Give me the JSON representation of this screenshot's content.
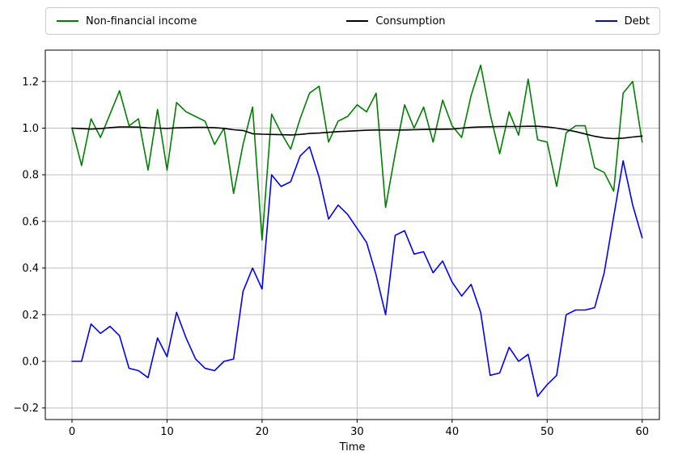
{
  "figure": {
    "background": "#ffffff"
  },
  "legend": {
    "position": "top-horizontal",
    "items": [
      {
        "label": "Non-financial income",
        "color": "#008000"
      },
      {
        "label": "Consumption",
        "color": "#000000"
      },
      {
        "label": "Debt",
        "color": "#0000ff"
      }
    ]
  },
  "colors": {
    "grid": "#c0c0c0",
    "spine": "#000000",
    "legend_border": "#cccccc"
  },
  "chart_data": {
    "type": "line",
    "title": "",
    "xlabel": "Time",
    "ylabel": "",
    "grid": true,
    "legend_position": "top horizontal, expanded",
    "xlim": [
      -2.81,
      61.81
    ],
    "ylim": [
      -0.2496,
      1.3345
    ],
    "x_ticks": [
      0,
      10,
      20,
      30,
      40,
      50,
      60
    ],
    "y_ticks": [
      -0.2,
      0.0,
      0.2,
      0.4,
      0.6,
      0.8,
      1.0,
      1.2
    ],
    "x": [
      0,
      1,
      2,
      3,
      4,
      5,
      6,
      7,
      8,
      9,
      10,
      11,
      12,
      13,
      14,
      15,
      16,
      17,
      18,
      19,
      20,
      21,
      22,
      23,
      24,
      25,
      26,
      27,
      28,
      29,
      30,
      31,
      32,
      33,
      34,
      35,
      36,
      37,
      38,
      39,
      40,
      41,
      42,
      43,
      44,
      45,
      46,
      47,
      48,
      49,
      50,
      51,
      52,
      53,
      54,
      55,
      56,
      57,
      58,
      59,
      60
    ],
    "series": [
      {
        "name": "Non-financial income",
        "color": "#008000",
        "values": [
          1.0,
          0.84,
          1.04,
          0.96,
          1.06,
          1.16,
          1.01,
          1.04,
          0.82,
          1.08,
          0.82,
          1.11,
          1.07,
          1.05,
          1.03,
          0.93,
          1.0,
          0.72,
          0.93,
          1.09,
          0.52,
          1.06,
          0.98,
          0.91,
          1.04,
          1.15,
          1.18,
          0.94,
          1.03,
          1.05,
          1.1,
          1.07,
          1.15,
          0.66,
          0.89,
          1.1,
          1.0,
          1.09,
          0.94,
          1.12,
          1.01,
          0.96,
          1.14,
          1.27,
          1.06,
          0.89,
          1.07,
          0.97,
          1.21,
          0.95,
          0.94,
          0.75,
          0.98,
          1.01,
          1.01,
          0.83,
          0.81,
          0.73,
          1.15,
          1.2,
          0.94
        ]
      },
      {
        "name": "Consumption",
        "color": "#000000",
        "values": [
          1.0,
          0.998,
          0.996,
          0.998,
          1.002,
          1.005,
          1.005,
          1.004,
          1.001,
          1.0,
          0.999,
          1.001,
          1.002,
          1.003,
          1.003,
          1.002,
          0.999,
          0.993,
          0.99,
          0.976,
          0.974,
          0.973,
          0.972,
          0.971,
          0.973,
          0.977,
          0.979,
          0.982,
          0.985,
          0.987,
          0.989,
          0.991,
          0.992,
          0.992,
          0.992,
          0.992,
          0.993,
          0.994,
          0.995,
          0.995,
          0.996,
          1.0,
          1.003,
          1.005,
          1.006,
          1.007,
          1.007,
          1.007,
          1.008,
          1.008,
          1.005,
          1.0,
          0.993,
          0.985,
          0.975,
          0.965,
          0.958,
          0.955,
          0.957,
          0.962,
          0.966
        ]
      },
      {
        "name": "Debt",
        "color": "#0000ff",
        "values": [
          0.0,
          0.0,
          0.16,
          0.12,
          0.15,
          0.11,
          -0.03,
          -0.04,
          -0.07,
          0.1,
          0.02,
          0.21,
          0.1,
          0.01,
          -0.03,
          -0.04,
          0.0,
          0.01,
          0.3,
          0.4,
          0.31,
          0.8,
          0.75,
          0.77,
          0.88,
          0.92,
          0.79,
          0.61,
          0.67,
          0.63,
          0.57,
          0.51,
          0.37,
          0.2,
          0.54,
          0.56,
          0.46,
          0.47,
          0.38,
          0.43,
          0.34,
          0.28,
          0.33,
          0.21,
          -0.06,
          -0.05,
          0.06,
          0.0,
          0.03,
          -0.15,
          -0.1,
          -0.06,
          0.2,
          0.22,
          0.22,
          0.23,
          0.38,
          0.62,
          0.86,
          0.67,
          0.53
        ]
      }
    ]
  }
}
